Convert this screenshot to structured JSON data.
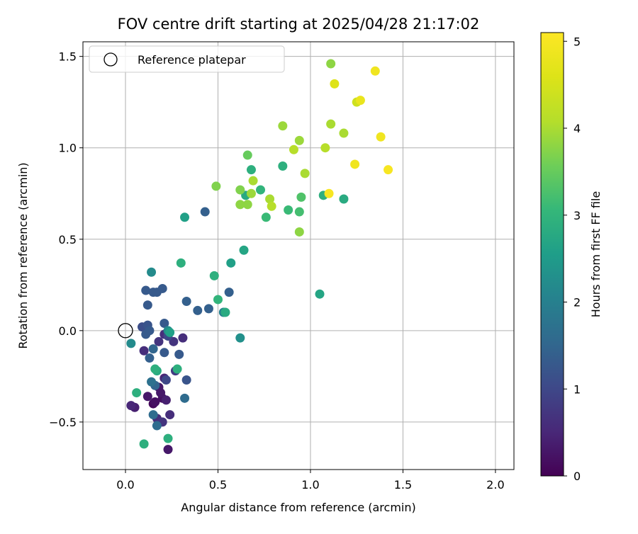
{
  "chart_data": {
    "type": "scatter",
    "title": "FOV centre drift starting at 2025/04/28 21:17:02",
    "xlabel": "Angular distance from reference (arcmin)",
    "ylabel": "Rotation from reference (arcmin)",
    "colorbar_label": "Hours from first FF file",
    "xlim": [
      -0.23,
      2.1
    ],
    "ylim": [
      -0.76,
      1.58
    ],
    "clim": [
      0,
      5.1
    ],
    "colormap": "viridis",
    "grid": true,
    "legend_position": "upper-left",
    "x_ticks": [
      {
        "value": 0.0,
        "label": "0.0"
      },
      {
        "value": 0.5,
        "label": "0.5"
      },
      {
        "value": 1.0,
        "label": "1.0"
      },
      {
        "value": 1.5,
        "label": "1.5"
      },
      {
        "value": 2.0,
        "label": "2.0"
      }
    ],
    "y_ticks": [
      {
        "value": -0.5,
        "label": "−0.5"
      },
      {
        "value": 0.0,
        "label": "0.0"
      },
      {
        "value": 0.5,
        "label": "0.5"
      },
      {
        "value": 1.0,
        "label": "1.0"
      },
      {
        "value": 1.5,
        "label": "1.5"
      }
    ],
    "colorbar_ticks": [
      {
        "value": 0,
        "label": "0"
      },
      {
        "value": 1,
        "label": "1"
      },
      {
        "value": 2,
        "label": "2"
      },
      {
        "value": 3,
        "label": "3"
      },
      {
        "value": 4,
        "label": "4"
      },
      {
        "value": 5,
        "label": "5"
      }
    ],
    "reference_point": {
      "label": "Reference platepar",
      "x": 0.0,
      "y": 0.0
    },
    "points": [
      {
        "x": 0.12,
        "y": -0.36,
        "h": 0.3
      },
      {
        "x": 0.16,
        "y": -0.39,
        "h": 0.2
      },
      {
        "x": 0.19,
        "y": -0.34,
        "h": 0.3
      },
      {
        "x": 0.15,
        "y": -0.4,
        "h": 0.1
      },
      {
        "x": 0.2,
        "y": -0.37,
        "h": 0.2
      },
      {
        "x": 0.18,
        "y": -0.31,
        "h": 0.3
      },
      {
        "x": 0.21,
        "y": -0.26,
        "h": 0.5
      },
      {
        "x": 0.22,
        "y": -0.38,
        "h": 0.4
      },
      {
        "x": 0.23,
        "y": -0.65,
        "h": 0.3
      },
      {
        "x": 0.03,
        "y": -0.41,
        "h": 0.5
      },
      {
        "x": 0.05,
        "y": -0.42,
        "h": 0.4
      },
      {
        "x": 0.1,
        "y": -0.11,
        "h": 0.6
      },
      {
        "x": 0.17,
        "y": -0.48,
        "h": 0.6
      },
      {
        "x": 0.2,
        "y": -0.5,
        "h": 0.7
      },
      {
        "x": 0.24,
        "y": -0.46,
        "h": 0.6
      },
      {
        "x": 0.18,
        "y": -0.06,
        "h": 0.7
      },
      {
        "x": 0.21,
        "y": -0.02,
        "h": 0.6
      },
      {
        "x": 0.26,
        "y": -0.06,
        "h": 0.7
      },
      {
        "x": 0.31,
        "y": -0.04,
        "h": 0.6
      },
      {
        "x": 0.27,
        "y": -0.22,
        "h": 0.8
      },
      {
        "x": 0.22,
        "y": -0.27,
        "h": 1.0
      },
      {
        "x": 0.33,
        "y": -0.27,
        "h": 1.2
      },
      {
        "x": 0.23,
        "y": -0.03,
        "h": 1.0
      },
      {
        "x": 0.29,
        "y": -0.13,
        "h": 1.3
      },
      {
        "x": 0.21,
        "y": -0.12,
        "h": 1.3
      },
      {
        "x": 0.13,
        "y": -0.15,
        "h": 1.4
      },
      {
        "x": 0.15,
        "y": -0.1,
        "h": 1.5
      },
      {
        "x": 0.09,
        "y": 0.02,
        "h": 1.1
      },
      {
        "x": 0.11,
        "y": -0.02,
        "h": 1.3
      },
      {
        "x": 0.12,
        "y": 0.03,
        "h": 1.2
      },
      {
        "x": 0.13,
        "y": 0.0,
        "h": 1.3
      },
      {
        "x": 0.21,
        "y": 0.04,
        "h": 1.3
      },
      {
        "x": 0.12,
        "y": 0.14,
        "h": 1.3
      },
      {
        "x": 0.11,
        "y": 0.22,
        "h": 1.3
      },
      {
        "x": 0.15,
        "y": 0.21,
        "h": 1.3
      },
      {
        "x": 0.17,
        "y": 0.21,
        "h": 1.3
      },
      {
        "x": 0.2,
        "y": 0.23,
        "h": 1.3
      },
      {
        "x": 0.33,
        "y": 0.16,
        "h": 1.4
      },
      {
        "x": 0.39,
        "y": 0.11,
        "h": 1.4
      },
      {
        "x": 0.45,
        "y": 0.12,
        "h": 1.4
      },
      {
        "x": 0.56,
        "y": 0.21,
        "h": 1.4
      },
      {
        "x": 0.43,
        "y": 0.65,
        "h": 1.4
      },
      {
        "x": 0.16,
        "y": -0.3,
        "h": 1.5
      },
      {
        "x": 0.14,
        "y": -0.28,
        "h": 1.7
      },
      {
        "x": 0.15,
        "y": -0.46,
        "h": 1.6
      },
      {
        "x": 0.17,
        "y": -0.52,
        "h": 1.6
      },
      {
        "x": 0.32,
        "y": -0.37,
        "h": 1.6
      },
      {
        "x": 0.23,
        "y": 0.0,
        "h": 2.2
      },
      {
        "x": 0.14,
        "y": 0.32,
        "h": 2.2
      },
      {
        "x": 0.03,
        "y": -0.07,
        "h": 2.2
      },
      {
        "x": 0.53,
        "y": 0.1,
        "h": 2.0
      },
      {
        "x": 0.62,
        "y": -0.04,
        "h": 2.3
      },
      {
        "x": 0.57,
        "y": 0.37,
        "h": 2.6
      },
      {
        "x": 0.64,
        "y": 0.44,
        "h": 2.7
      },
      {
        "x": 0.54,
        "y": 0.1,
        "h": 2.8
      },
      {
        "x": 0.5,
        "y": 0.17,
        "h": 3.0
      },
      {
        "x": 0.48,
        "y": 0.3,
        "h": 2.9
      },
      {
        "x": 0.3,
        "y": 0.37,
        "h": 2.9
      },
      {
        "x": 0.32,
        "y": 0.62,
        "h": 2.6
      },
      {
        "x": 0.24,
        "y": -0.01,
        "h": 2.6
      },
      {
        "x": 0.17,
        "y": -0.22,
        "h": 2.8
      },
      {
        "x": 0.16,
        "y": -0.21,
        "h": 2.9
      },
      {
        "x": 0.28,
        "y": -0.21,
        "h": 2.9
      },
      {
        "x": 0.06,
        "y": -0.34,
        "h": 2.9
      },
      {
        "x": 0.1,
        "y": -0.62,
        "h": 2.9
      },
      {
        "x": 0.23,
        "y": -0.59,
        "h": 2.9
      },
      {
        "x": 1.05,
        "y": 0.2,
        "h": 2.7
      },
      {
        "x": 1.18,
        "y": 0.72,
        "h": 2.8
      },
      {
        "x": 1.07,
        "y": 0.74,
        "h": 2.9
      },
      {
        "x": 0.85,
        "y": 0.9,
        "h": 2.9
      },
      {
        "x": 0.68,
        "y": 0.88,
        "h": 2.9
      },
      {
        "x": 0.65,
        "y": 0.74,
        "h": 2.8
      },
      {
        "x": 0.73,
        "y": 0.77,
        "h": 3.0
      },
      {
        "x": 0.76,
        "y": 0.62,
        "h": 3.1
      },
      {
        "x": 0.88,
        "y": 0.66,
        "h": 3.1
      },
      {
        "x": 0.94,
        "y": 0.65,
        "h": 3.2
      },
      {
        "x": 0.95,
        "y": 0.73,
        "h": 3.3
      },
      {
        "x": 0.66,
        "y": 0.96,
        "h": 3.5
      },
      {
        "x": 0.49,
        "y": 0.79,
        "h": 3.7
      },
      {
        "x": 0.62,
        "y": 0.77,
        "h": 3.7
      },
      {
        "x": 0.62,
        "y": 0.69,
        "h": 3.8
      },
      {
        "x": 0.66,
        "y": 0.69,
        "h": 3.8
      },
      {
        "x": 0.68,
        "y": 0.75,
        "h": 3.9
      },
      {
        "x": 0.69,
        "y": 0.82,
        "h": 4.0
      },
      {
        "x": 0.78,
        "y": 0.72,
        "h": 4.0
      },
      {
        "x": 0.79,
        "y": 0.68,
        "h": 4.1
      },
      {
        "x": 0.94,
        "y": 0.54,
        "h": 3.8
      },
      {
        "x": 0.97,
        "y": 0.86,
        "h": 4.0
      },
      {
        "x": 0.91,
        "y": 0.99,
        "h": 4.1
      },
      {
        "x": 0.94,
        "y": 1.04,
        "h": 3.9
      },
      {
        "x": 0.85,
        "y": 1.12,
        "h": 3.9
      },
      {
        "x": 1.08,
        "y": 1.0,
        "h": 4.1
      },
      {
        "x": 1.11,
        "y": 1.13,
        "h": 4.0
      },
      {
        "x": 1.18,
        "y": 1.08,
        "h": 4.0
      },
      {
        "x": 1.11,
        "y": 1.46,
        "h": 3.8
      },
      {
        "x": 1.13,
        "y": 1.35,
        "h": 4.6
      },
      {
        "x": 1.25,
        "y": 1.25,
        "h": 4.4
      },
      {
        "x": 1.27,
        "y": 1.26,
        "h": 4.8
      },
      {
        "x": 1.35,
        "y": 1.42,
        "h": 4.9
      },
      {
        "x": 1.38,
        "y": 1.06,
        "h": 4.9
      },
      {
        "x": 1.42,
        "y": 0.88,
        "h": 5.0
      },
      {
        "x": 1.24,
        "y": 0.91,
        "h": 4.9
      },
      {
        "x": 1.1,
        "y": 0.75,
        "h": 5.0
      }
    ]
  }
}
